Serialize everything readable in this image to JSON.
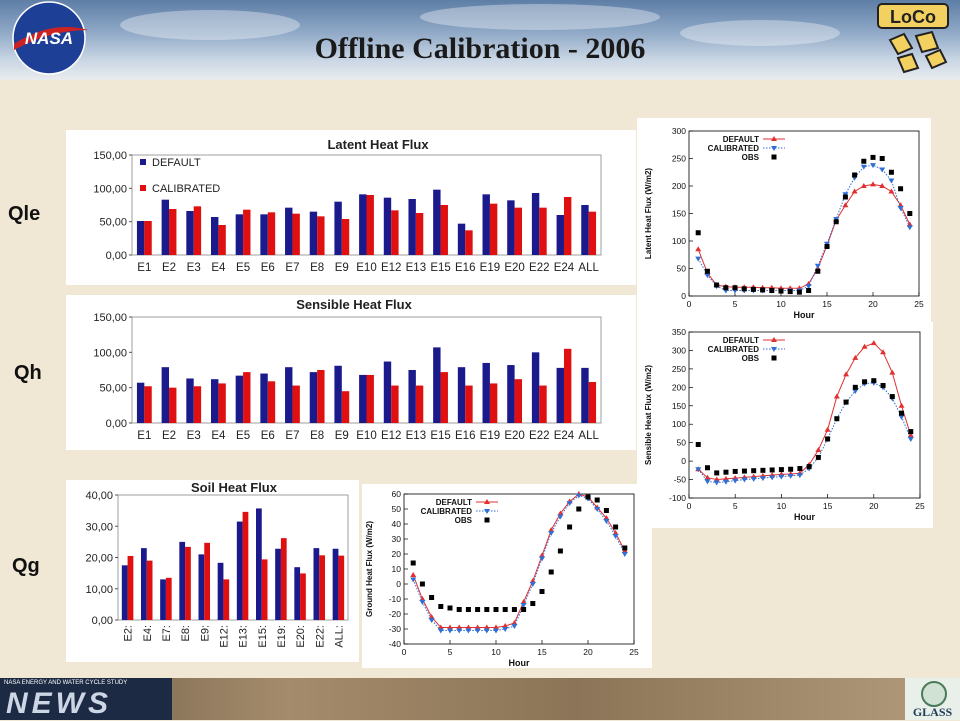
{
  "page": {
    "title": "Offline Calibration - 2006",
    "row_labels": [
      "Qle",
      "Qh",
      "Qg"
    ],
    "logos": {
      "left": "NASA",
      "right": "LoCo",
      "footer_left_top": "NASA ENERGY AND WATER CYCLE STUDY",
      "footer_left_main": "NEWS",
      "footer_right": "GLASS"
    }
  },
  "colors": {
    "default": "#1a1a8c",
    "calibrated": "#e01010",
    "line_default": "#e03030",
    "line_calibrated": "#2f6fd6",
    "obs": "#000000"
  },
  "chart_data": [
    {
      "type": "bar",
      "title": "Latent Heat Flux",
      "categories": [
        "E1",
        "E2",
        "E3",
        "E4",
        "E5",
        "E6",
        "E7",
        "E8",
        "E9",
        "E10",
        "E12",
        "E13",
        "E15",
        "E16",
        "E19",
        "E20",
        "E22",
        "E24",
        "ALL"
      ],
      "ylim": [
        0,
        150
      ],
      "yticks": [
        "0,00",
        "50,00",
        "100,00",
        "150,00"
      ],
      "legend": "top-left",
      "series": [
        {
          "name": "DEFAULT",
          "values": [
            51,
            83,
            66,
            57,
            61,
            61,
            71,
            65,
            80,
            91,
            86,
            84,
            98,
            47,
            91,
            82,
            93,
            60,
            75
          ]
        },
        {
          "name": "CALIBRATED",
          "values": [
            51,
            69,
            73,
            45,
            68,
            64,
            62,
            58,
            54,
            90,
            67,
            63,
            75,
            37,
            77,
            71,
            71,
            87,
            65
          ]
        }
      ]
    },
    {
      "type": "bar",
      "title": "Sensible Heat Flux",
      "categories": [
        "E1",
        "E2",
        "E3",
        "E4",
        "E5",
        "E6",
        "E7",
        "E8",
        "E9",
        "E10",
        "E12",
        "E13",
        "E15",
        "E16",
        "E19",
        "E20",
        "E22",
        "E24",
        "ALL"
      ],
      "ylim": [
        0,
        150
      ],
      "yticks": [
        "0,00",
        "50,00",
        "100,00",
        "150,00"
      ],
      "series": [
        {
          "values": [
            57,
            79,
            63,
            62,
            67,
            70,
            79,
            72,
            81,
            68,
            87,
            75,
            107,
            79,
            85,
            82,
            100,
            78,
            78
          ]
        },
        {
          "values": [
            52,
            50,
            52,
            56,
            72,
            59,
            53,
            75,
            45,
            68,
            53,
            53,
            72,
            53,
            56,
            62,
            53,
            105,
            58
          ]
        }
      ]
    },
    {
      "type": "bar",
      "title": "Soil Heat Flux",
      "categories": [
        "E2:",
        "E4:",
        "E7:",
        "E8:",
        "E9:",
        "E12:",
        "E13:",
        "E15:",
        "E19:",
        "E20:",
        "E22:",
        "ALL:"
      ],
      "ylim": [
        0,
        40
      ],
      "yticks": [
        "0,00",
        "10,00",
        "20,00",
        "30,00",
        "40,00"
      ],
      "series": [
        {
          "values": [
            17.5,
            23,
            13,
            25,
            21,
            18.3,
            31.5,
            35.7,
            22.8,
            16.9,
            23,
            22.8
          ]
        },
        {
          "values": [
            20.5,
            19,
            13.5,
            23.4,
            24.7,
            13,
            34.6,
            19.4,
            26.2,
            14.9,
            20.7,
            20.6
          ]
        }
      ]
    },
    {
      "type": "line",
      "xlabel": "Hour",
      "ylabel": "Latent Heat Flux (W/m2)",
      "xlim": [
        0,
        25
      ],
      "ylim": [
        0,
        300
      ],
      "xticks": [
        0,
        5,
        10,
        15,
        20,
        25
      ],
      "yticks": [
        0,
        50,
        100,
        150,
        200,
        250,
        300
      ],
      "legend": "top-left",
      "x": [
        1,
        2,
        3,
        4,
        5,
        6,
        7,
        8,
        9,
        10,
        11,
        12,
        13,
        14,
        15,
        16,
        17,
        18,
        19,
        20,
        21,
        22,
        23,
        24
      ],
      "series": [
        {
          "name": "DEFAULT",
          "values": [
            85,
            42,
            20,
            17,
            16,
            16,
            16,
            15,
            15,
            14,
            14,
            14,
            22,
            50,
            92,
            138,
            165,
            190,
            200,
            203,
            200,
            190,
            165,
            130
          ]
        },
        {
          "name": "CALIBRATED",
          "values": [
            68,
            38,
            18,
            10,
            10,
            10,
            10,
            10,
            10,
            10,
            10,
            10,
            18,
            55,
            95,
            140,
            185,
            215,
            235,
            238,
            230,
            210,
            160,
            125
          ]
        },
        {
          "name": "OBS",
          "values": [
            115,
            45,
            20,
            15,
            15,
            13,
            12,
            11,
            10,
            9,
            8,
            7,
            10,
            45,
            90,
            135,
            180,
            220,
            245,
            252,
            250,
            225,
            195,
            150
          ]
        }
      ]
    },
    {
      "type": "line",
      "xlabel": "Hour",
      "ylabel": "Sensible Heat Flux (W/m2)",
      "xlim": [
        0,
        25
      ],
      "ylim": [
        -100,
        350
      ],
      "xticks": [
        0,
        5,
        10,
        15,
        20,
        25
      ],
      "yticks": [
        -100,
        -50,
        0,
        50,
        100,
        150,
        200,
        250,
        300,
        350
      ],
      "legend": "top-left",
      "x": [
        1,
        2,
        3,
        4,
        5,
        6,
        7,
        8,
        9,
        10,
        11,
        12,
        13,
        14,
        15,
        16,
        17,
        18,
        19,
        20,
        21,
        22,
        23,
        24
      ],
      "series": [
        {
          "name": "DEFAULT",
          "values": [
            -22,
            -45,
            -50,
            -48,
            -46,
            -44,
            -42,
            -40,
            -38,
            -36,
            -35,
            -33,
            -10,
            30,
            85,
            175,
            235,
            280,
            310,
            320,
            295,
            240,
            150,
            70
          ]
        },
        {
          "name": "CALIBRATED",
          "values": [
            -22,
            -55,
            -58,
            -56,
            -53,
            -50,
            -48,
            -46,
            -44,
            -42,
            -40,
            -38,
            -20,
            10,
            60,
            115,
            160,
            190,
            210,
            212,
            200,
            170,
            120,
            60
          ]
        },
        {
          "name": "OBS",
          "values": [
            45,
            -18,
            -32,
            -30,
            -28,
            -27,
            -26,
            -25,
            -24,
            -23,
            -22,
            -20,
            -15,
            10,
            60,
            115,
            160,
            200,
            215,
            218,
            205,
            175,
            130,
            80
          ]
        }
      ]
    },
    {
      "type": "line",
      "xlabel": "Hour",
      "ylabel": "Ground Heat Flux (W/m2)",
      "xlim": [
        0,
        25
      ],
      "ylim": [
        -40,
        60
      ],
      "xticks": [
        0,
        5,
        10,
        15,
        20,
        25
      ],
      "yticks": [
        -40,
        -30,
        -20,
        -10,
        0,
        10,
        20,
        30,
        40,
        50,
        60
      ],
      "legend": "top-left",
      "x": [
        1,
        2,
        3,
        4,
        5,
        6,
        7,
        8,
        9,
        10,
        11,
        12,
        13,
        14,
        15,
        16,
        17,
        18,
        19,
        20,
        21,
        22,
        23,
        24
      ],
      "series": [
        {
          "name": "DEFAULT",
          "values": [
            6,
            -10,
            -22,
            -29,
            -29,
            -29,
            -29,
            -29,
            -29,
            -29,
            -28,
            -26,
            -12,
            2,
            19,
            36,
            47,
            55,
            60,
            58,
            51,
            44,
            34,
            22
          ]
        },
        {
          "name": "CALIBRATED",
          "values": [
            3,
            -12,
            -24,
            -31,
            -31,
            -31,
            -31,
            -31,
            -31,
            -31,
            -30,
            -28,
            -14,
            0,
            17,
            34,
            45,
            54,
            59,
            57,
            50,
            42,
            32,
            20
          ]
        },
        {
          "name": "OBS",
          "values": [
            14,
            0,
            -9,
            -15,
            -16,
            -17,
            -17,
            -17,
            -17,
            -17,
            -17,
            -17,
            -17,
            -13,
            -5,
            8,
            22,
            38,
            50,
            58,
            56,
            49,
            38,
            24
          ]
        }
      ]
    }
  ]
}
